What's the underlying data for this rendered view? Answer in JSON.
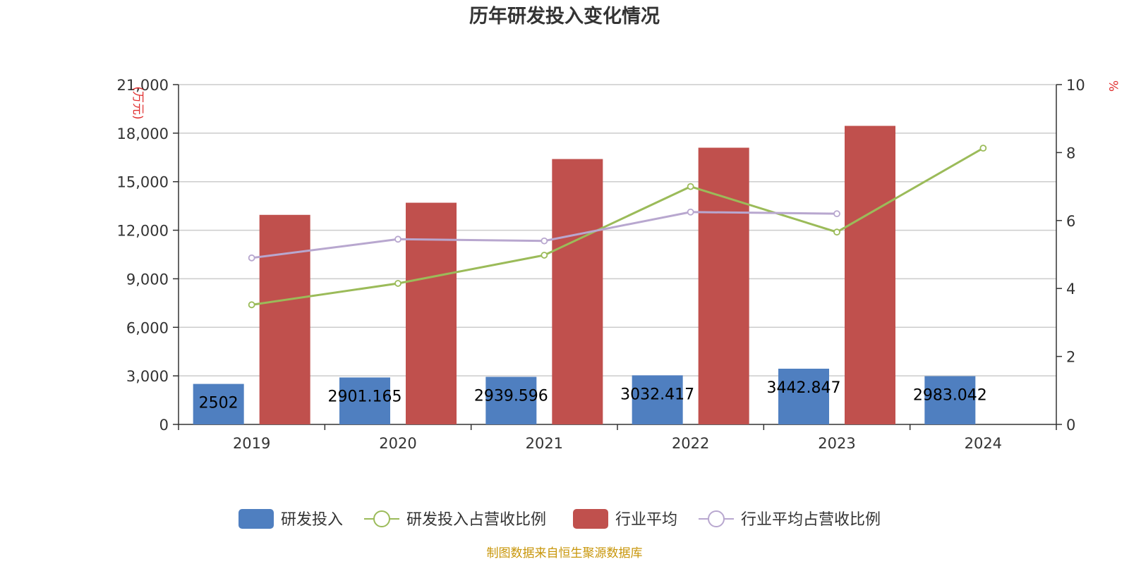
{
  "chart_data": {
    "type": "bar",
    "title": "历年研发投入变化情况",
    "categories": [
      "2019",
      "2020",
      "2021",
      "2022",
      "2023",
      "2024"
    ],
    "y_left": {
      "unit": "万元",
      "ylim": [
        0,
        21000
      ],
      "ticks": [
        0,
        3000,
        6000,
        9000,
        12000,
        15000,
        18000,
        21000
      ],
      "tick_labels": [
        "0",
        "3,000",
        "6,000",
        "9,000",
        "12,000",
        "15,000",
        "18,000",
        "21,000"
      ]
    },
    "y_right": {
      "unit": "%",
      "ylim": [
        0,
        10
      ],
      "ticks": [
        0,
        2,
        4,
        6,
        8,
        10
      ],
      "tick_labels": [
        "0",
        "2",
        "4",
        "6",
        "8",
        "10"
      ]
    },
    "grid": true,
    "legend_position": "bottom-center",
    "series": [
      {
        "name": "研发投入",
        "type": "bar",
        "axis": "left",
        "color": "#4f7fc0",
        "values": [
          2502,
          2901.165,
          2939.596,
          3032.417,
          3442.847,
          2983.042
        ],
        "labels": [
          "2502",
          "2901.165",
          "2939.596",
          "3032.417",
          "3442.847",
          "2983.042"
        ]
      },
      {
        "name": "研发投入占营收比例",
        "type": "line",
        "axis": "right",
        "color": "#9bbb59",
        "values": [
          3.52,
          4.15,
          4.98,
          7.0,
          5.66,
          8.13
        ]
      },
      {
        "name": "行业平均",
        "type": "bar",
        "axis": "left",
        "color": "#c0504d",
        "values": [
          12950,
          13700,
          16400,
          17100,
          18450,
          null
        ]
      },
      {
        "name": "行业平均占营收比例",
        "type": "line",
        "axis": "right",
        "color": "#b8a7cf",
        "values": [
          4.9,
          5.45,
          5.4,
          6.25,
          6.2,
          null
        ]
      }
    ]
  },
  "footer": {
    "source": "制图数据来自恒生聚源数据库"
  }
}
